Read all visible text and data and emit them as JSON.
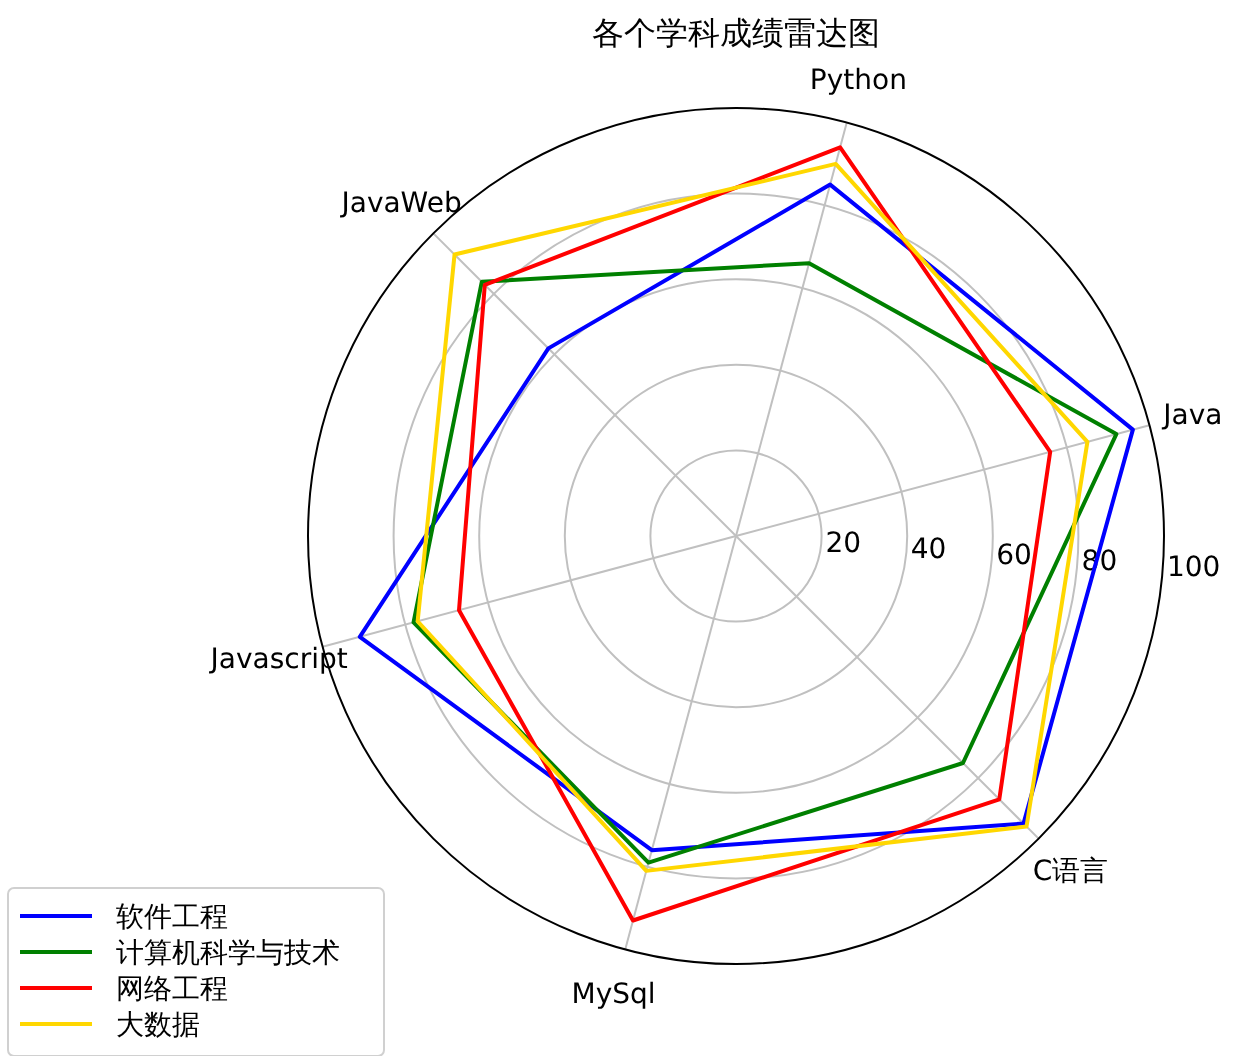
{
  "chart_data": {
    "type": "radar",
    "title": "各个学科成绩雷达图",
    "categories": [
      "Python",
      "Java",
      "C语言",
      "MySql",
      "Javascript",
      "JavaWeb"
    ],
    "series": [
      {
        "name": "软件工程",
        "color": "#0000ff",
        "values": [
          85,
          96,
          95,
          76,
          91,
          62
        ]
      },
      {
        "name": "计算机科学与技术",
        "color": "#008000",
        "values": [
          66,
          92,
          75,
          79,
          78,
          84
        ]
      },
      {
        "name": "网络工程",
        "color": "#ff0000",
        "values": [
          94,
          76,
          87,
          93,
          67,
          83
        ]
      },
      {
        "name": "大数据",
        "color": "#ffd700",
        "values": [
          90,
          85,
          96,
          81,
          77,
          93
        ]
      }
    ],
    "ylim": [
      0,
      100
    ],
    "yticks": [
      20,
      40,
      60,
      80,
      100
    ],
    "grid": true,
    "legend": "bottom left"
  }
}
